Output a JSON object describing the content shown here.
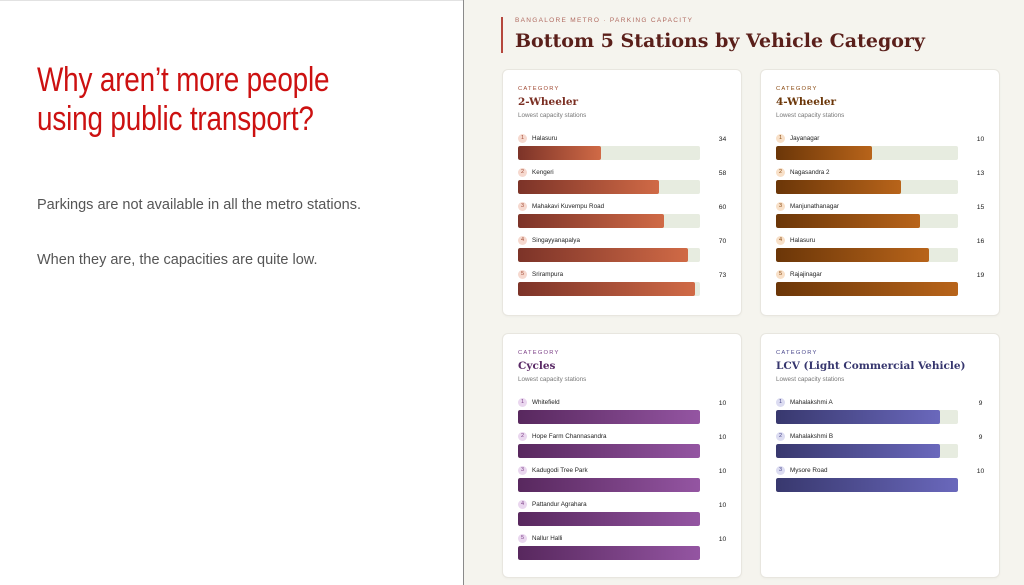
{
  "slide": {
    "headline_line1": "Why aren’t more people",
    "headline_line2": "using public transport?",
    "paragraph1": "Parkings are not available in all the metro stations.",
    "paragraph2": "When they are, the capacities are quite low."
  },
  "panel": {
    "eyebrow": "BANGALORE METRO · PARKING CAPACITY",
    "title": "Bottom 5 Stations by Vehicle Category",
    "accent_color": "#b5473d",
    "title_color": "#5a1f1a"
  },
  "chart_data": [
    {
      "type": "bar",
      "orientation": "horizontal",
      "category_tag": "CATEGORY",
      "title": "2-Wheeler",
      "subtitle": "Lowest capacity stations",
      "color_start": "#7c3328",
      "color_end": "#d06a46",
      "tag_color": "#a14a34",
      "title_color": "#7a2e22",
      "badge_bg": "#f6d9cf",
      "badge_fg": "#a14a34",
      "xmax": 75,
      "categories": [
        "Halasuru",
        "Kengeri",
        "Mahakavi Kuvempu Road",
        "Singayyanapalya",
        "Srirampura"
      ],
      "values": [
        34,
        58,
        60,
        70,
        73
      ]
    },
    {
      "type": "bar",
      "orientation": "horizontal",
      "category_tag": "CATEGORY",
      "title": "4-Wheeler",
      "subtitle": "Lowest capacity stations",
      "color_start": "#6b3608",
      "color_end": "#b8641a",
      "tag_color": "#8a4a12",
      "title_color": "#6b3608",
      "badge_bg": "#f8e0c8",
      "badge_fg": "#8a4a12",
      "xmax": 19,
      "categories": [
        "Jayanagar",
        "Nagasandra 2",
        "Manjunathanagar",
        "Halasuru",
        "Rajajinagar"
      ],
      "values": [
        10,
        13,
        15,
        16,
        19
      ]
    },
    {
      "type": "bar",
      "orientation": "horizontal",
      "category_tag": "CATEGORY",
      "title": "Cycles",
      "subtitle": "Lowest capacity stations",
      "color_start": "#58285e",
      "color_end": "#9455a2",
      "tag_color": "#7b3f86",
      "title_color": "#5a2a66",
      "badge_bg": "#ead7ef",
      "badge_fg": "#7b3f86",
      "xmax": 10,
      "categories": [
        "Whitefield",
        "Hope Farm Channasandra",
        "Kadugodi Tree Park",
        "Pattandur Agrahara",
        "Nallur Halli"
      ],
      "values": [
        10,
        10,
        10,
        10,
        10
      ]
    },
    {
      "type": "bar",
      "orientation": "horizontal",
      "category_tag": "CATEGORY",
      "title": "LCV (Light Commercial Vehicle)",
      "subtitle": "Lowest capacity stations",
      "color_start": "#38386e",
      "color_end": "#6a68bc",
      "tag_color": "#4c4a8e",
      "title_color": "#36366e",
      "badge_bg": "#dcdcf1",
      "badge_fg": "#4c4a8e",
      "xmax": 10,
      "categories": [
        "Mahalakshmi A",
        "Mahalakshmi B",
        "Mysore Road"
      ],
      "values": [
        9,
        9,
        10
      ]
    }
  ]
}
